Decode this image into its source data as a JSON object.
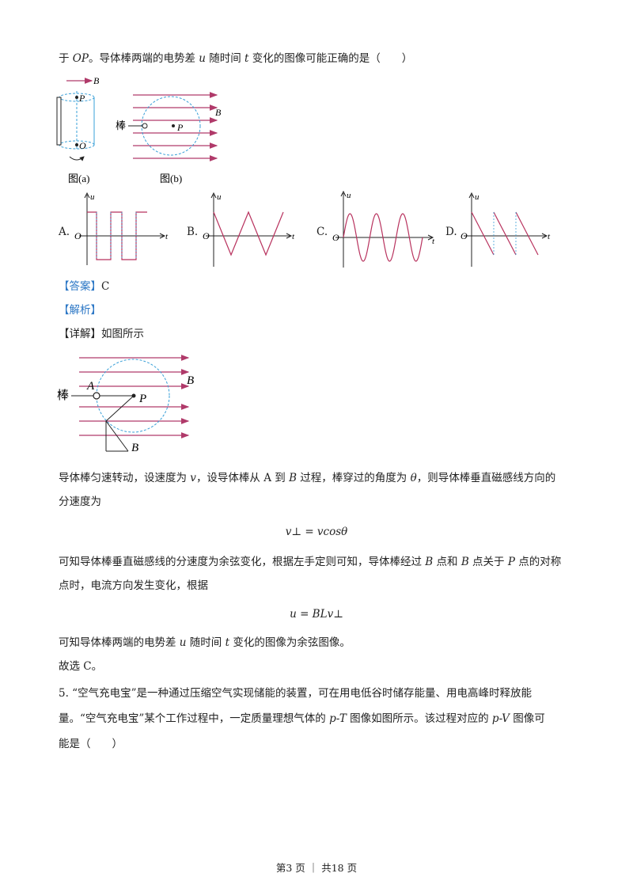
{
  "question_stem_end": {
    "p1": "于 ",
    "op": "OP",
    "p2": "。导体棒两端的电势差 ",
    "u": "u",
    "p3": " 随时间 ",
    "t": "t",
    "p4": " 变化的图像可能正确的是（　　）"
  },
  "figures": {
    "fig_a_caption": "图(a)",
    "fig_b_caption": "图(b)",
    "label_B": "B",
    "label_P": "P",
    "label_O": "O",
    "label_rod": "棒"
  },
  "options": [
    {
      "label": "A.",
      "curve": "square",
      "u": "u",
      "t": "t",
      "o": "O"
    },
    {
      "label": "B.",
      "curve": "triangle",
      "u": "u",
      "t": "t",
      "o": "O"
    },
    {
      "label": "C.",
      "curve": "sine",
      "u": "u",
      "t": "t",
      "o": "O"
    },
    {
      "label": "D.",
      "curve": "sawtooth",
      "u": "u",
      "t": "t",
      "o": "O"
    }
  ],
  "answer": {
    "tag": "【答案】",
    "value": "C"
  },
  "analysis_tag": "【解析】",
  "detail": {
    "tag": "【详解】",
    "text": "如图所示"
  },
  "detail_figure": {
    "label_A": "A",
    "label_B1": "B",
    "label_P": "P",
    "label_B2": "B",
    "label_rod": "棒"
  },
  "explanation": {
    "l1a": "导体棒匀速转动，设速度为 ",
    "l1v": "v",
    "l1b": "，设导体棒从 A 到 ",
    "l1B": "B",
    "l1c": " 过程，棒穿过的角度为 ",
    "l1theta": "θ",
    "l1d": "，则导体棒垂直磁感线方向的",
    "l2": "分速度为",
    "eq1": "v⊥ = vcosθ",
    "l3a": "可知导体棒垂直磁感线的分速度为余弦变化，根据左手定则可知，导体棒经过 ",
    "l3B1": "B",
    "l3b": " 点和 ",
    "l3B2": "B",
    "l3c": " 点关于 ",
    "l3P": "P",
    "l3d": " 点的对称",
    "l4": "点时，电流方向发生变化，根据",
    "eq2": "u = BLv⊥",
    "l5a": "可知导体棒两端的电势差 ",
    "l5u": "u",
    "l5b": " 随时间 ",
    "l5t": "t",
    "l5c": " 变化的图像为余弦图像。",
    "l6": "故选 C。"
  },
  "next_question": {
    "l1": "5. “空气充电宝”是一种通过压缩空气实现储能的装置，可在用电低谷时储存能量、用电高峰时释放能",
    "l2a": "量。“空气充电宝”某个工作过程中，一定质量理想气体的 ",
    "l2pt": "p-T",
    "l2b": " 图像如图所示。该过程对应的 ",
    "l2pv": "p-V",
    "l2c": " 图像可",
    "l3": "能是（　　）"
  },
  "footer": "第3 页 ｜ 共18 页",
  "colors": {
    "field_line": "#b03a6a",
    "dashed": "#3aa0d8",
    "tag": "#2d78c6",
    "curve": "#b8325e"
  }
}
